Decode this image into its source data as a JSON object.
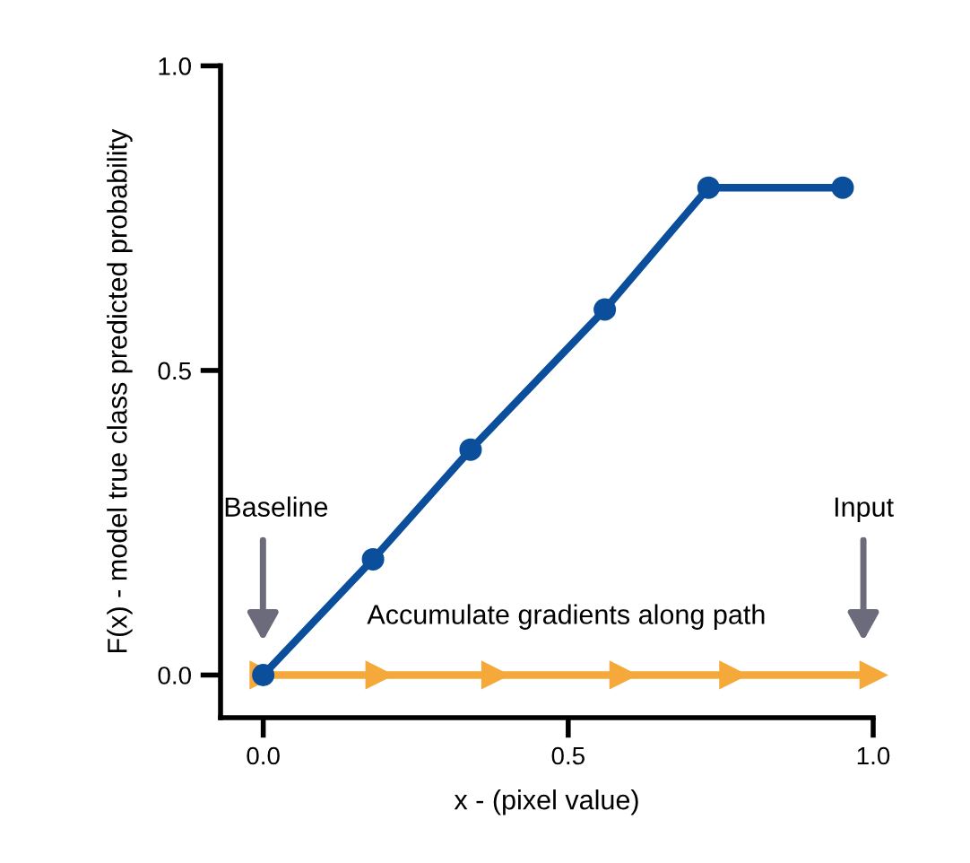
{
  "chart_data": {
    "type": "line",
    "xlabel": "x - (pixel value)",
    "ylabel": "F(x) - model true class predicted probability",
    "xlim": [
      -0.07,
      1.0
    ],
    "ylim": [
      -0.07,
      1.0
    ],
    "xticks": [
      {
        "value": 0,
        "label": "0.0"
      },
      {
        "value": 0.5,
        "label": "0.5"
      },
      {
        "value": 1.0,
        "label": "1.0"
      }
    ],
    "yticks": [
      {
        "value": 0,
        "label": "0.0"
      },
      {
        "value": 0.5,
        "label": "0.5"
      },
      {
        "value": 1.0,
        "label": "1.0"
      }
    ],
    "grid": false,
    "legend": false,
    "line_style": "solid",
    "series": [
      {
        "color": "#f5a93a",
        "marker": "triangle",
        "x": [
          0,
          0.19,
          0.38,
          0.59,
          0.77,
          1.0
        ],
        "values": [
          0,
          0,
          0,
          0,
          0,
          0
        ]
      },
      {
        "color": "#0b4f9c",
        "marker": "circle",
        "x": [
          0,
          0.18,
          0.34,
          0.56,
          0.73,
          0.95
        ],
        "values": [
          0,
          0.19,
          0.37,
          0.6,
          0.8,
          0.8
        ]
      }
    ],
    "annotations": [
      "Baseline",
      "Input",
      "Accumulate gradients along path"
    ]
  }
}
